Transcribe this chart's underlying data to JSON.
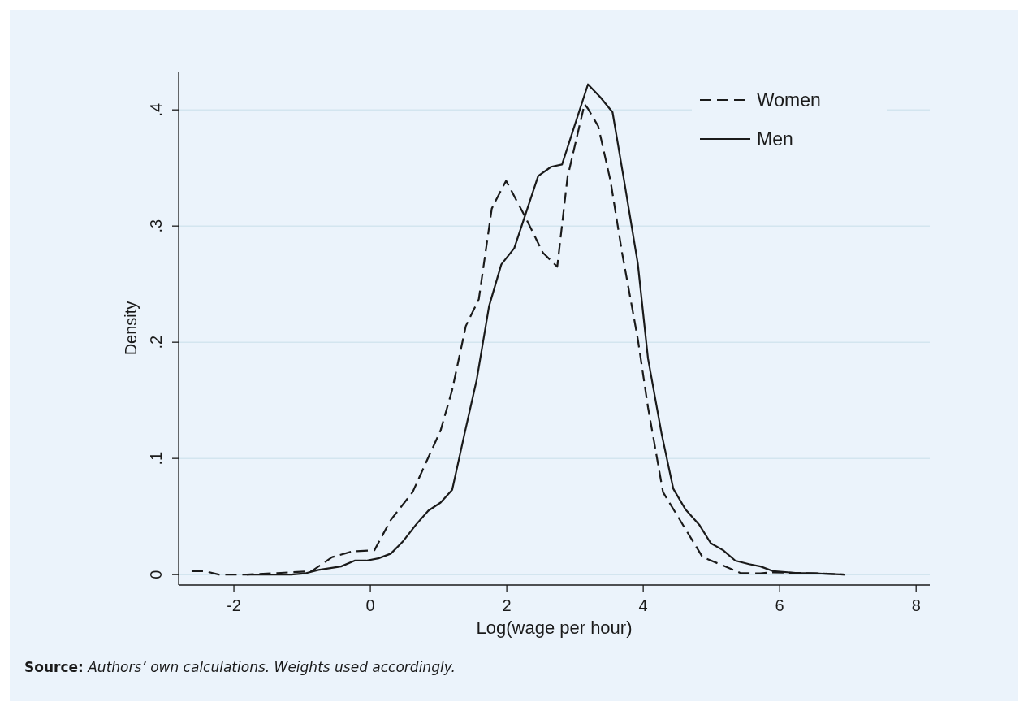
{
  "chart_data": {
    "type": "line",
    "xlabel": "Log(wage per hour)",
    "ylabel": "Density",
    "xlim": [
      -2.81,
      8.2
    ],
    "xticks": [
      -2,
      0,
      2,
      4,
      6,
      8
    ],
    "ylim": [
      -0.009,
      0.433
    ],
    "yticks": [
      0,
      {
        "value": 0.1,
        "label": ".1"
      },
      {
        "value": 0.2,
        "label": ".2"
      },
      {
        "value": 0.3,
        "label": ".3"
      },
      {
        "value": 0.4,
        "label": ".4"
      }
    ],
    "grid": "y",
    "legend": "top right",
    "series": [
      {
        "name": "Women",
        "color": "#1a1a1a",
        "line_style": "dashed",
        "x": [
          -2.62,
          -2.43,
          -2.22,
          -1.81,
          -1.31,
          -0.86,
          -0.56,
          -0.26,
          0.06,
          0.3,
          0.62,
          0.82,
          1.03,
          1.2,
          1.4,
          1.59,
          1.78,
          1.83,
          1.99,
          2.26,
          2.53,
          2.74,
          2.89,
          3.14,
          3.19,
          3.34,
          3.52,
          3.69,
          3.92,
          4.07,
          4.29,
          4.6,
          4.87,
          5.12,
          5.42,
          5.72,
          5.88,
          6.2,
          6.6,
          6.96
        ],
        "values": [
          0.003,
          0.003,
          0,
          0,
          0.0015,
          0.003,
          0.015,
          0.02,
          0.021,
          0.047,
          0.071,
          0.097,
          0.124,
          0.159,
          0.214,
          0.237,
          0.315,
          0.321,
          0.339,
          0.309,
          0.277,
          0.265,
          0.342,
          0.405,
          0.401,
          0.386,
          0.339,
          0.277,
          0.203,
          0.144,
          0.071,
          0.041,
          0.015,
          0.009,
          0.0015,
          0.001,
          0.002,
          0.0015,
          0.001,
          0
        ]
      },
      {
        "name": "Men",
        "color": "#1a1a1a",
        "line_style": "solid",
        "x": [
          -1.81,
          -1.16,
          -0.96,
          -0.76,
          -0.43,
          -0.23,
          -0.06,
          0.12,
          0.3,
          0.47,
          0.67,
          0.85,
          1.03,
          1.2,
          1.38,
          1.56,
          1.74,
          1.92,
          2.11,
          2.46,
          2.65,
          2.81,
          3.19,
          3.37,
          3.55,
          3.72,
          3.92,
          4.07,
          4.27,
          4.44,
          4.62,
          4.82,
          4.99,
          5.17,
          5.35,
          5.55,
          5.72,
          5.9,
          6.23,
          6.53,
          6.96
        ],
        "values": [
          0,
          0,
          0.001,
          0.004,
          0.007,
          0.012,
          0.012,
          0.014,
          0.018,
          0.028,
          0.043,
          0.055,
          0.062,
          0.073,
          0.121,
          0.168,
          0.231,
          0.267,
          0.281,
          0.343,
          0.351,
          0.353,
          0.422,
          0.411,
          0.398,
          0.339,
          0.268,
          0.186,
          0.121,
          0.074,
          0.056,
          0.043,
          0.027,
          0.021,
          0.012,
          0.009,
          0.007,
          0.003,
          0.0015,
          0.001,
          0
        ]
      }
    ],
    "annotations": [
      "Source: Authors’ own calculations. Weights used accordingly."
    ]
  }
}
